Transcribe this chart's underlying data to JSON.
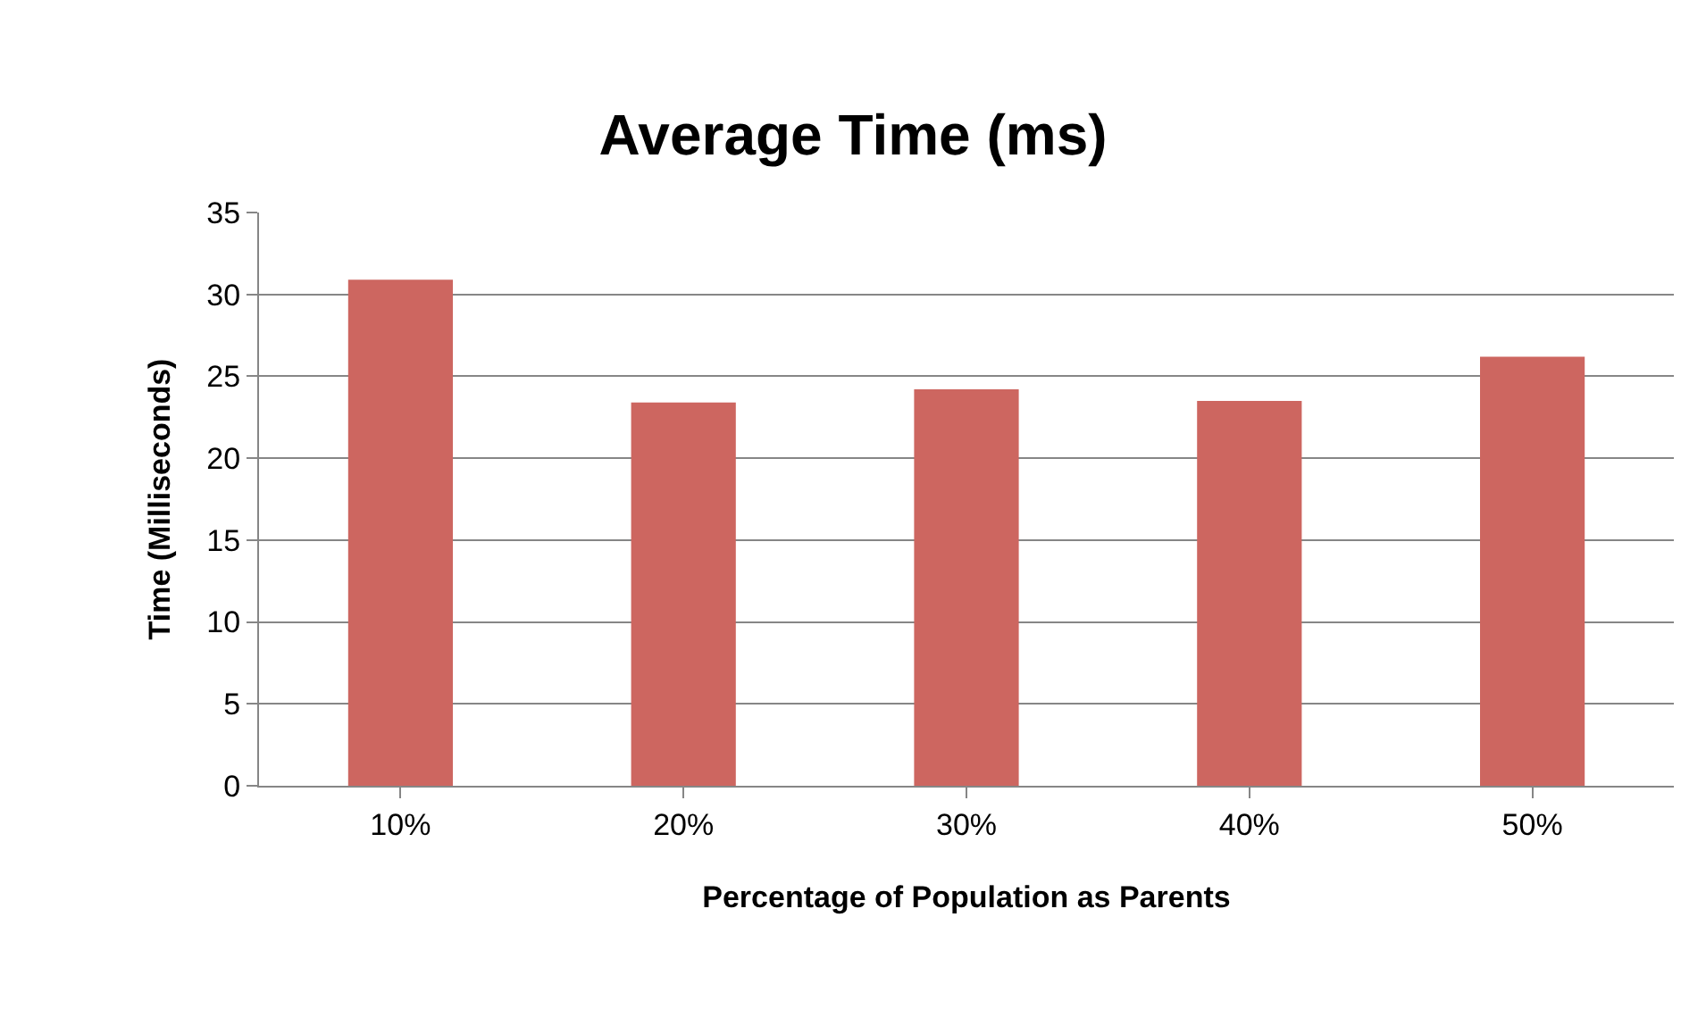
{
  "chart_data": {
    "type": "bar",
    "title": "Average Time (ms)",
    "xlabel": "Percentage of Population as Parents",
    "ylabel": "Time (Milliseconds)",
    "categories": [
      "10%",
      "20%",
      "30%",
      "40%",
      "50%"
    ],
    "values": [
      30.9,
      23.4,
      24.2,
      23.5,
      26.2
    ],
    "color": "#cd6660",
    "ylim": [
      0,
      35
    ],
    "yticks": [
      0,
      5,
      10,
      15,
      20,
      25,
      30,
      35
    ],
    "grid": "y"
  }
}
